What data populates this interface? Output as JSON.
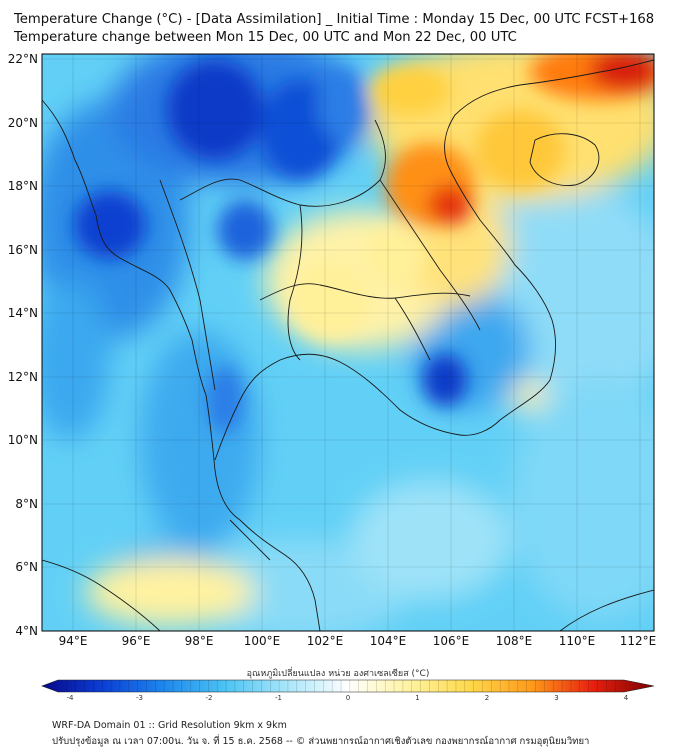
{
  "header": {
    "title_line1": "Temperature Change (°C) - [Data Assimilation] _ Initial Time : Monday 15 Dec, 00 UTC FCST+168",
    "title_line2": "Temperature change between Mon 15 Dec, 00 UTC and Mon 22 Dec, 00 UTC"
  },
  "map": {
    "lat_labels": [
      "22°N",
      "20°N",
      "18°N",
      "16°N",
      "14°N",
      "12°N",
      "10°N",
      "8°N",
      "6°N",
      "4°N"
    ],
    "lon_labels": [
      "94°E",
      "96°E",
      "98°E",
      "100°E",
      "102°E",
      "104°E",
      "106°E",
      "108°E",
      "110°E",
      "112°E"
    ],
    "lat_range": [
      4,
      22
    ],
    "lon_range": [
      93,
      112.5
    ],
    "field": "temperature change (°C)",
    "features": [
      {
        "name": "cold-core-myanmar-west",
        "lon": 95.5,
        "lat": 16.7,
        "value": -3.2
      },
      {
        "name": "cold-core-myanmar-north",
        "lon": 98.5,
        "lat": 20.6,
        "value": -3.5
      },
      {
        "name": "cold-core-south-vietnam",
        "lon": 105.8,
        "lat": 12.0,
        "value": -3.0
      },
      {
        "name": "warm-core-north-laos-vietnam",
        "lon": 105.5,
        "lat": 17.8,
        "value": 2.8
      },
      {
        "name": "warm-core-south-china",
        "lon": 111.5,
        "lat": 21.8,
        "value": 3.6
      },
      {
        "name": "warm-area-northeast-thailand",
        "lon": 103.5,
        "lat": 15.0,
        "value": 1.2
      },
      {
        "name": "warm-area-south-andaman",
        "lon": 96.5,
        "lat": 5.5,
        "value": 1.0
      }
    ]
  },
  "colorbar": {
    "title": "อุณหภูมิเปลี่ยนแปลง หน่วย องศาเซลเซียส (°C)",
    "min": -4,
    "max": 4,
    "ticks": [
      "-4",
      "-3",
      "-2",
      "-1",
      "0",
      "1",
      "2",
      "3",
      "4"
    ],
    "colors": [
      "#08088a",
      "#0b3fd6",
      "#1e88ee",
      "#4cc4f4",
      "#a8e6fa",
      "#ffffff",
      "#fff3a0",
      "#ffd84a",
      "#ff9a1a",
      "#e8200e",
      "#7a0000"
    ]
  },
  "footer": {
    "line1": "WRF-DA Domain 01 :: Grid Resolution 9km x 9km",
    "line2": "ปรับปรุงข้อมูล ณ เวลา 07:00น. วัน จ. ที่ 15 ธ.ค. 2568 -- © ส่วนพยากรณ์อากาศเชิงตัวเลข กองพยากรณ์อากาศ กรมอุตุนิยมวิทยา"
  }
}
